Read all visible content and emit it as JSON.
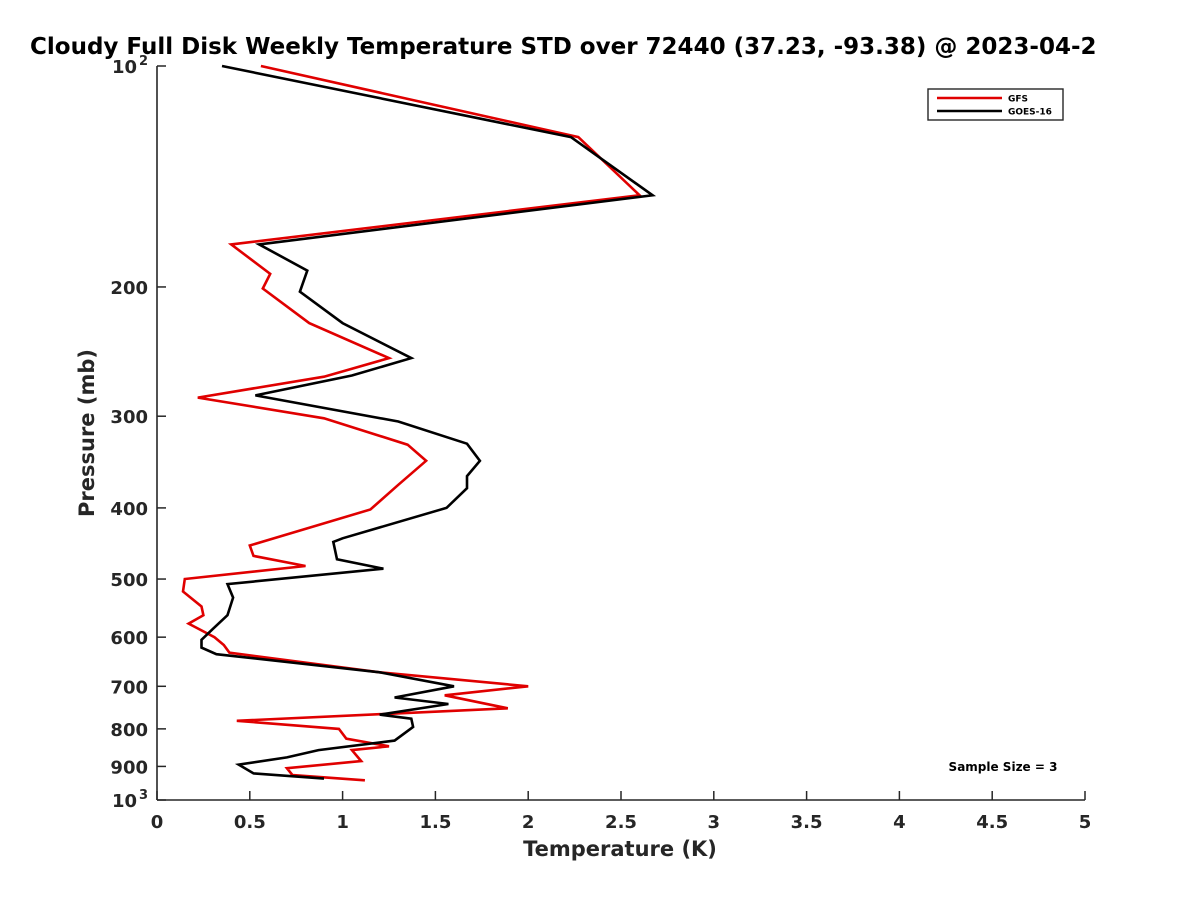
{
  "chart_data": {
    "type": "line",
    "title": "Cloudy Full Disk Weekly Temperature STD over 72440 (37.23, -93.38) @ 2023-04-2",
    "xlabel": "Temperature (K)",
    "ylabel": "Pressure (mb)",
    "xlim": [
      0,
      5
    ],
    "ylim": [
      100,
      1000
    ],
    "y_scale": "log",
    "y_reversed": true,
    "x_ticks": [
      "0",
      "0.5",
      "1",
      "1.5",
      "2",
      "2.5",
      "3",
      "3.5",
      "4",
      "4.5",
      "5"
    ],
    "x_tick_values": [
      0,
      0.5,
      1,
      1.5,
      2,
      2.5,
      3,
      3.5,
      4,
      4.5,
      5
    ],
    "y_ticks": [
      {
        "value": 100,
        "label": "10",
        "exp": "2"
      },
      {
        "value": 200,
        "label": "200"
      },
      {
        "value": 300,
        "label": "300"
      },
      {
        "value": 400,
        "label": "400"
      },
      {
        "value": 500,
        "label": "500"
      },
      {
        "value": 600,
        "label": "600"
      },
      {
        "value": 700,
        "label": "700"
      },
      {
        "value": 800,
        "label": "800"
      },
      {
        "value": 900,
        "label": "900"
      },
      {
        "value": 1000,
        "label": "10",
        "exp": "3"
      }
    ],
    "grid": false,
    "legend_position": "top-right",
    "annotation": "Sample Size = 3",
    "series": [
      {
        "name": "GFS",
        "color": "#e00000",
        "points": [
          [
            0.56,
            100
          ],
          [
            2.27,
            125
          ],
          [
            2.6,
            150
          ],
          [
            0.4,
            175
          ],
          [
            0.61,
            192
          ],
          [
            0.57,
            201
          ],
          [
            0.82,
            224
          ],
          [
            1.25,
            250
          ],
          [
            0.9,
            265
          ],
          [
            0.22,
            283
          ],
          [
            0.9,
            302
          ],
          [
            1.35,
            328
          ],
          [
            1.45,
            345
          ],
          [
            1.3,
            372
          ],
          [
            1.15,
            402
          ],
          [
            0.5,
            450
          ],
          [
            0.52,
            465
          ],
          [
            0.8,
            480
          ],
          [
            0.15,
            500
          ],
          [
            0.14,
            520
          ],
          [
            0.24,
            545
          ],
          [
            0.25,
            560
          ],
          [
            0.17,
            575
          ],
          [
            0.21,
            582
          ],
          [
            0.31,
            600
          ],
          [
            0.36,
            615
          ],
          [
            0.39,
            630
          ],
          [
            1.2,
            670
          ],
          [
            2.0,
            700
          ],
          [
            1.55,
            720
          ],
          [
            1.89,
            750
          ],
          [
            0.43,
            780
          ],
          [
            0.98,
            800
          ],
          [
            1.02,
            825
          ],
          [
            1.25,
            845
          ],
          [
            1.05,
            855
          ],
          [
            1.1,
            885
          ],
          [
            0.7,
            905
          ],
          [
            0.73,
            925
          ],
          [
            1.12,
            940
          ]
        ]
      },
      {
        "name": "GOES-16",
        "color": "#000000",
        "points": [
          [
            0.35,
            100
          ],
          [
            2.23,
            125
          ],
          [
            2.67,
            150
          ],
          [
            0.55,
            175
          ],
          [
            0.81,
            190
          ],
          [
            0.77,
            203
          ],
          [
            1.0,
            224
          ],
          [
            1.37,
            250
          ],
          [
            1.05,
            264
          ],
          [
            0.53,
            281
          ],
          [
            1.3,
            305
          ],
          [
            1.67,
            327
          ],
          [
            1.74,
            345
          ],
          [
            1.67,
            362
          ],
          [
            1.67,
            376
          ],
          [
            1.56,
            400
          ],
          [
            1.0,
            440
          ],
          [
            0.95,
            445
          ],
          [
            0.97,
            470
          ],
          [
            1.22,
            484
          ],
          [
            0.38,
            508
          ],
          [
            0.41,
            530
          ],
          [
            0.38,
            560
          ],
          [
            0.3,
            585
          ],
          [
            0.24,
            605
          ],
          [
            0.24,
            620
          ],
          [
            0.32,
            633
          ],
          [
            1.2,
            670
          ],
          [
            1.6,
            700
          ],
          [
            1.28,
            725
          ],
          [
            1.57,
            740
          ],
          [
            1.2,
            765
          ],
          [
            1.37,
            775
          ],
          [
            1.38,
            795
          ],
          [
            1.28,
            830
          ],
          [
            0.87,
            855
          ],
          [
            0.7,
            875
          ],
          [
            0.44,
            895
          ],
          [
            0.52,
            920
          ],
          [
            0.9,
            935
          ]
        ]
      }
    ]
  }
}
